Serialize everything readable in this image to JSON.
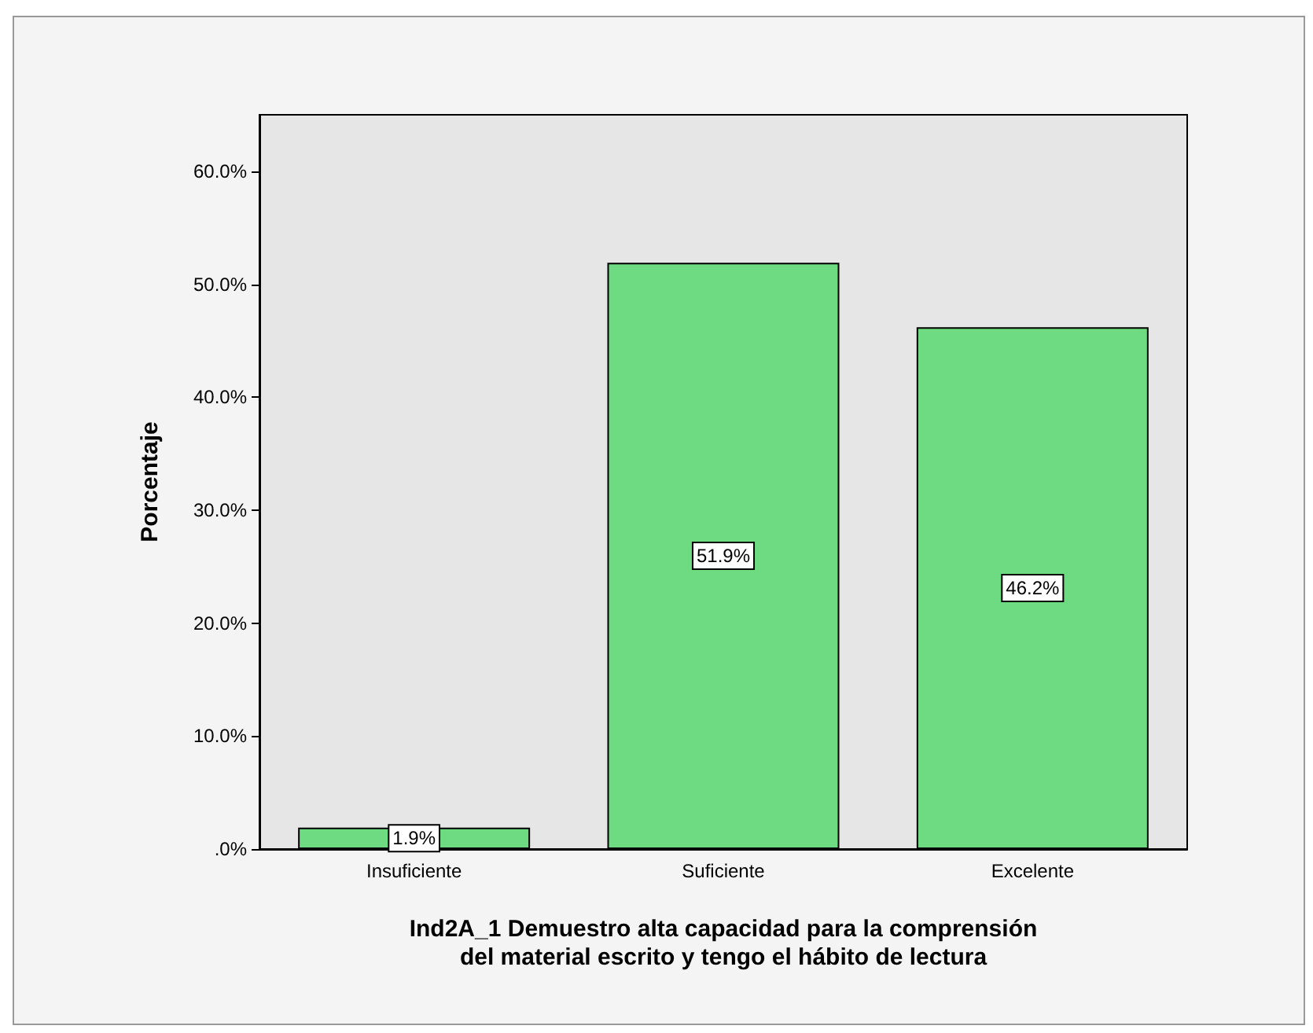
{
  "chart_data": {
    "type": "bar",
    "xlabel": "Ind2A_1 Demuestro alta capacidad para la comprensión\ndel material escrito y tengo el hábito de lectura",
    "ylabel": "Porcentaje",
    "categories": [
      "Insuficiente",
      "Suficiente",
      "Excelente"
    ],
    "values": [
      1.9,
      51.9,
      46.2
    ],
    "color": "#6edb82",
    "value_labels": [
      "1.9%",
      "51.9%",
      "46.2%"
    ],
    "ylim": [
      0,
      65
    ],
    "yticks": [
      {
        "value": 0,
        "label": ".0%"
      },
      {
        "value": 10,
        "label": "10.0%"
      },
      {
        "value": 20,
        "label": "20.0%"
      },
      {
        "value": 30,
        "label": "30.0%"
      },
      {
        "value": 40,
        "label": "40.0%"
      },
      {
        "value": 50,
        "label": "50.0%"
      },
      {
        "value": 60,
        "label": "60.0%"
      }
    ],
    "grid": false
  }
}
